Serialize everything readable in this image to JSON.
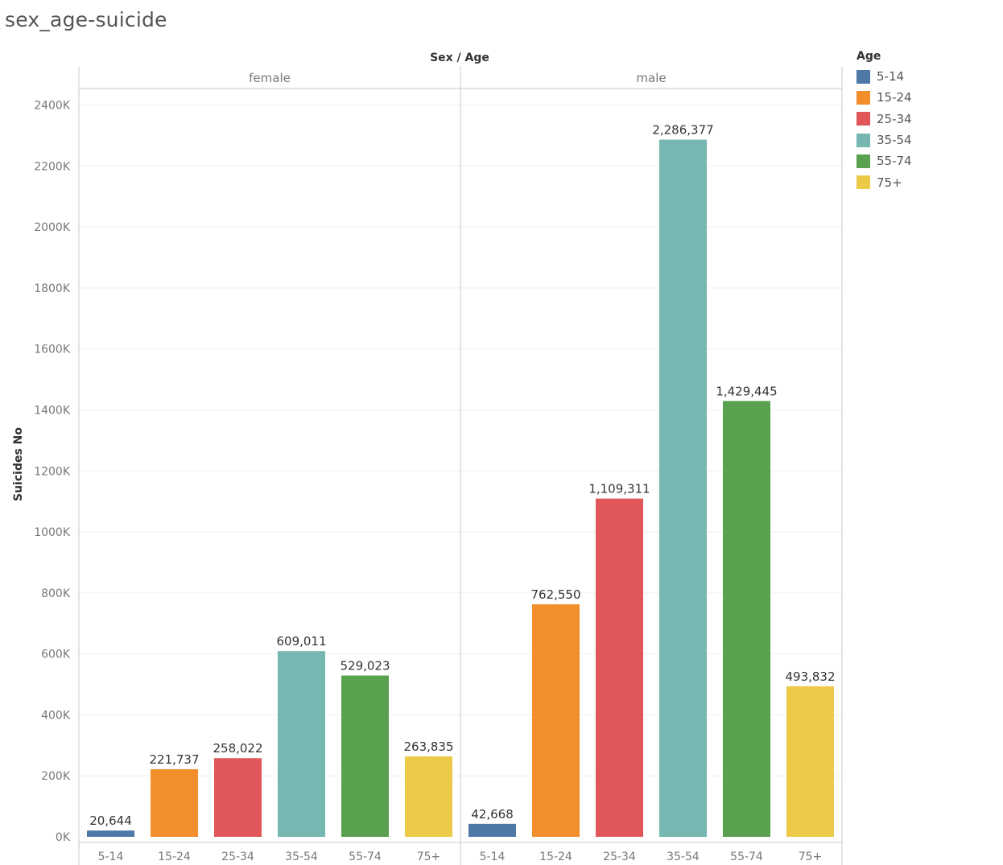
{
  "title": "sex_age-suicide",
  "chart_data": {
    "type": "bar",
    "header": "Sex / Age",
    "ylabel": "Suicides No",
    "ylim": [
      0,
      2500000
    ],
    "yticks": [
      0,
      200000,
      400000,
      600000,
      800000,
      1000000,
      1200000,
      1400000,
      1600000,
      1800000,
      2000000,
      2200000,
      2400000
    ],
    "ytick_labels": [
      "0K",
      "200K",
      "400K",
      "600K",
      "800K",
      "1000K",
      "1200K",
      "1400K",
      "1600K",
      "1800K",
      "2000K",
      "2200K",
      "2400K"
    ],
    "categories": [
      "5-14",
      "15-24",
      "25-34",
      "35-54",
      "55-74",
      "75+"
    ],
    "panes": [
      {
        "name": "female",
        "values": [
          20644,
          221737,
          258022,
          609011,
          529023,
          263835
        ],
        "labels": [
          "20,644",
          "221,737",
          "258,022",
          "609,011",
          "529,023",
          "263,835"
        ]
      },
      {
        "name": "male",
        "values": [
          42668,
          762550,
          1109311,
          2286377,
          1429445,
          493832
        ],
        "labels": [
          "42,668",
          "762,550",
          "1,109,311",
          "2,286,377",
          "1,429,445",
          "493,832"
        ]
      }
    ],
    "grid": true,
    "legend": {
      "title": "Age",
      "placement": "right",
      "items": [
        "5-14",
        "15-24",
        "25-34",
        "35-54",
        "55-74",
        "75+"
      ]
    },
    "colors": [
      "#4e79a7",
      "#f28e2b",
      "#e15759",
      "#76b7b2",
      "#59a14f",
      "#edc948"
    ]
  }
}
